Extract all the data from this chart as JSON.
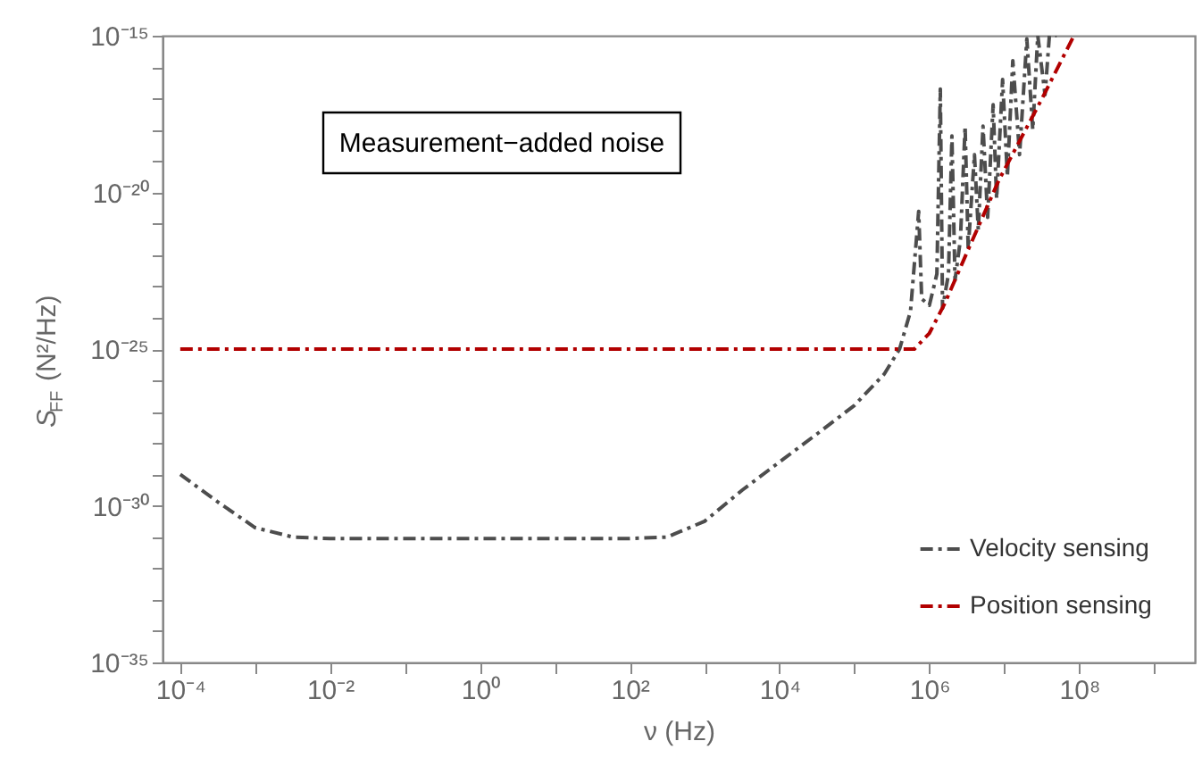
{
  "chart_data": {
    "type": "line",
    "xlabel": "ν (Hz)",
    "ylabel": "S$_{FF}$ (N²/Hz)",
    "annotations": [
      "Measurement−added noise"
    ],
    "log": "xy",
    "grid": false,
    "legend": "bottom right",
    "line_style": "dashdot",
    "marker": "none",
    "xlim": [
      5.8e-05,
      3500000000.0
    ],
    "ylim": [
      1e-35,
      1e-15
    ],
    "xticks": [
      {
        "value": 0.0001,
        "label": "10⁻⁴"
      },
      {
        "value": 0.001,
        "label": null
      },
      {
        "value": 0.01,
        "label": "10⁻²"
      },
      {
        "value": 0.1,
        "label": null
      },
      {
        "value": 1,
        "label": "10⁰"
      },
      {
        "value": 10,
        "label": null
      },
      {
        "value": 100,
        "label": "10²"
      },
      {
        "value": 1000.0,
        "label": null
      },
      {
        "value": 10000.0,
        "label": "10⁴"
      },
      {
        "value": 100000.0,
        "label": null
      },
      {
        "value": 1000000.0,
        "label": "10⁶"
      },
      {
        "value": 10000000.0,
        "label": null
      },
      {
        "value": 100000000.0,
        "label": "10⁸"
      },
      {
        "value": 1000000000.0,
        "label": null
      }
    ],
    "yticks": [
      {
        "value": 1e-35,
        "label": "10⁻³⁵"
      },
      {
        "value": 1e-34,
        "label": null
      },
      {
        "value": 1e-33,
        "label": null
      },
      {
        "value": 1e-32,
        "label": null
      },
      {
        "value": 1e-31,
        "label": null
      },
      {
        "value": 1e-30,
        "label": "10⁻³⁰"
      },
      {
        "value": 1e-29,
        "label": null
      },
      {
        "value": 1e-28,
        "label": null
      },
      {
        "value": 1e-27,
        "label": null
      },
      {
        "value": 1e-26,
        "label": null
      },
      {
        "value": 1e-25,
        "label": "10⁻²⁵"
      },
      {
        "value": 1e-24,
        "label": null
      },
      {
        "value": 1e-23,
        "label": null
      },
      {
        "value": 1e-22,
        "label": null
      },
      {
        "value": 1e-21,
        "label": null
      },
      {
        "value": 1e-20,
        "label": "10⁻²⁰"
      },
      {
        "value": 1e-19,
        "label": null
      },
      {
        "value": 1e-18,
        "label": null
      },
      {
        "value": 1e-17,
        "label": null
      },
      {
        "value": 1e-16,
        "label": null
      },
      {
        "value": 1e-15,
        "label": "10⁻¹⁵"
      }
    ],
    "series": [
      {
        "name": "Velocity sensing",
        "color": "#4d4d4d",
        "x": [
          0.0001,
          0.00032,
          0.001,
          0.0032,
          0.01,
          1,
          100,
          316,
          1000.0,
          3200.0,
          10000.0,
          32000.0,
          100000.0,
          250000.0,
          400000.0,
          560000.0,
          720000.0,
          790000.0,
          1000000.0,
          1260000.0,
          1400000.0,
          1500000.0,
          1800000.0,
          2000000.0,
          2200000.0,
          2600000.0,
          3000000.0,
          3300000.0,
          4000000.0,
          4500000.0,
          5200000.0,
          6000000.0,
          7100000.0,
          7900000.0,
          9500000.0,
          11000000.0,
          13000000.0,
          16000000.0,
          20000000.0,
          24000000.0,
          28000000.0,
          35000000.0,
          40000000.0,
          50000000.0
        ],
        "values": [
          1e-29,
          1.3e-30,
          2e-31,
          1e-31,
          9e-32,
          9e-32,
          9e-32,
          1e-31,
          3.2e-31,
          3.2e-30,
          2.5e-29,
          2e-28,
          1.6e-27,
          1.6e-26,
          1e-25,
          1.6e-24,
          2.5e-21,
          4e-24,
          2.5e-24,
          2.5e-23,
          2e-17,
          2e-24,
          2.5e-23,
          6.3e-19,
          1.6e-23,
          3.2e-22,
          1.3e-18,
          1.6e-22,
          1.6e-19,
          6.3e-22,
          1.3e-18,
          1.6e-21,
          6.3e-18,
          6.3e-21,
          4e-17,
          3.2e-20,
          1.6e-16,
          1.6e-19,
          7.9e-16,
          1e-18,
          1e-15,
          1.3e-17,
          1e-15,
          1e-15
        ]
      },
      {
        "name": "Position sensing",
        "color": "#b20000",
        "x": [
          0.0001,
          100000.0,
          630000.0,
          1000000.0,
          1600000.0,
          3200000.0,
          8500000.0,
          32000000.0,
          85000000.0
        ],
        "values": [
          1e-25,
          1e-25,
          1e-25,
          3.2e-25,
          2.8e-24,
          1.26e-22,
          2.5e-20,
          1e-17,
          1e-15
        ]
      }
    ]
  }
}
